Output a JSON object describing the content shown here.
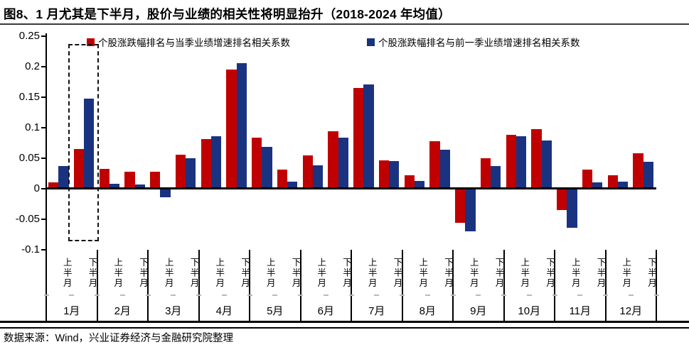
{
  "title": "图8、1 月尤其是下半月，股价与业绩的相关性将明显抬升（2018-2024 年均值）",
  "source": "数据来源：Wind，兴业证券经济与金融研究院整理",
  "colors": {
    "red": "#C00000",
    "blue": "#1A3380",
    "axis": "#000000"
  },
  "legend": {
    "current_quarter": "个股涨跌幅排名与当季业绩增速排名相关系数",
    "previous_quarter": "个股涨跌幅排名与前一季业绩增速排名相关系数"
  },
  "chart_data": {
    "type": "bar",
    "title": "图8、1 月尤其是下半月，股价与业绩的相关性将明显抬升（2018-2024 年均值）",
    "xlabel": "",
    "ylabel": "",
    "ylim": [
      -0.1,
      0.25
    ],
    "grid": false,
    "legend_position": "top",
    "months": [
      "1月",
      "2月",
      "3月",
      "4月",
      "5月",
      "6月",
      "7月",
      "8月",
      "9月",
      "10月",
      "11月",
      "12月"
    ],
    "half_labels": [
      "上半月",
      "下半月"
    ],
    "categories": [
      "1月上半月",
      "1月下半月",
      "2月上半月",
      "2月下半月",
      "3月上半月",
      "3月下半月",
      "4月上半月",
      "4月下半月",
      "5月上半月",
      "5月下半月",
      "6月上半月",
      "6月下半月",
      "7月上半月",
      "7月下半月",
      "8月上半月",
      "8月下半月",
      "9月上半月",
      "9月下半月",
      "10月上半月",
      "10月下半月",
      "11月上半月",
      "11月下半月",
      "12月上半月",
      "12月下半月"
    ],
    "y_ticks": [
      0.25,
      0.2,
      0.15,
      0.1,
      0.05,
      0,
      -0.05,
      -0.1
    ],
    "y_tick_labels": [
      "0.25",
      "0.2",
      "0.15",
      "0.1",
      "0.05",
      "0",
      "-0.05",
      "-0.1"
    ],
    "series": [
      {
        "name": "个股涨跌幅排名与当季业绩增速排名相关系数",
        "color": "#C00000",
        "values": [
          0.01,
          0.065,
          0.032,
          0.027,
          0.027,
          0.055,
          0.081,
          0.195,
          0.083,
          0.031,
          0.054,
          0.094,
          0.165,
          0.046,
          0.021,
          0.077,
          -0.056,
          0.049,
          0.088,
          0.097,
          -0.035,
          0.031,
          0.022,
          0.057
        ]
      },
      {
        "name": "个股涨跌幅排名与前一季业绩增速排名相关系数",
        "color": "#1A3380",
        "values": [
          0.037,
          0.147,
          0.007,
          0.006,
          -0.014,
          0.05,
          0.085,
          0.205,
          0.068,
          0.011,
          0.038,
          0.083,
          0.17,
          0.045,
          0.012,
          0.063,
          -0.07,
          0.037,
          0.086,
          0.078,
          -0.065,
          0.01,
          0.011,
          0.044
        ]
      }
    ],
    "highlight": {
      "category": "1月下半月",
      "style": "dashed-box"
    }
  }
}
